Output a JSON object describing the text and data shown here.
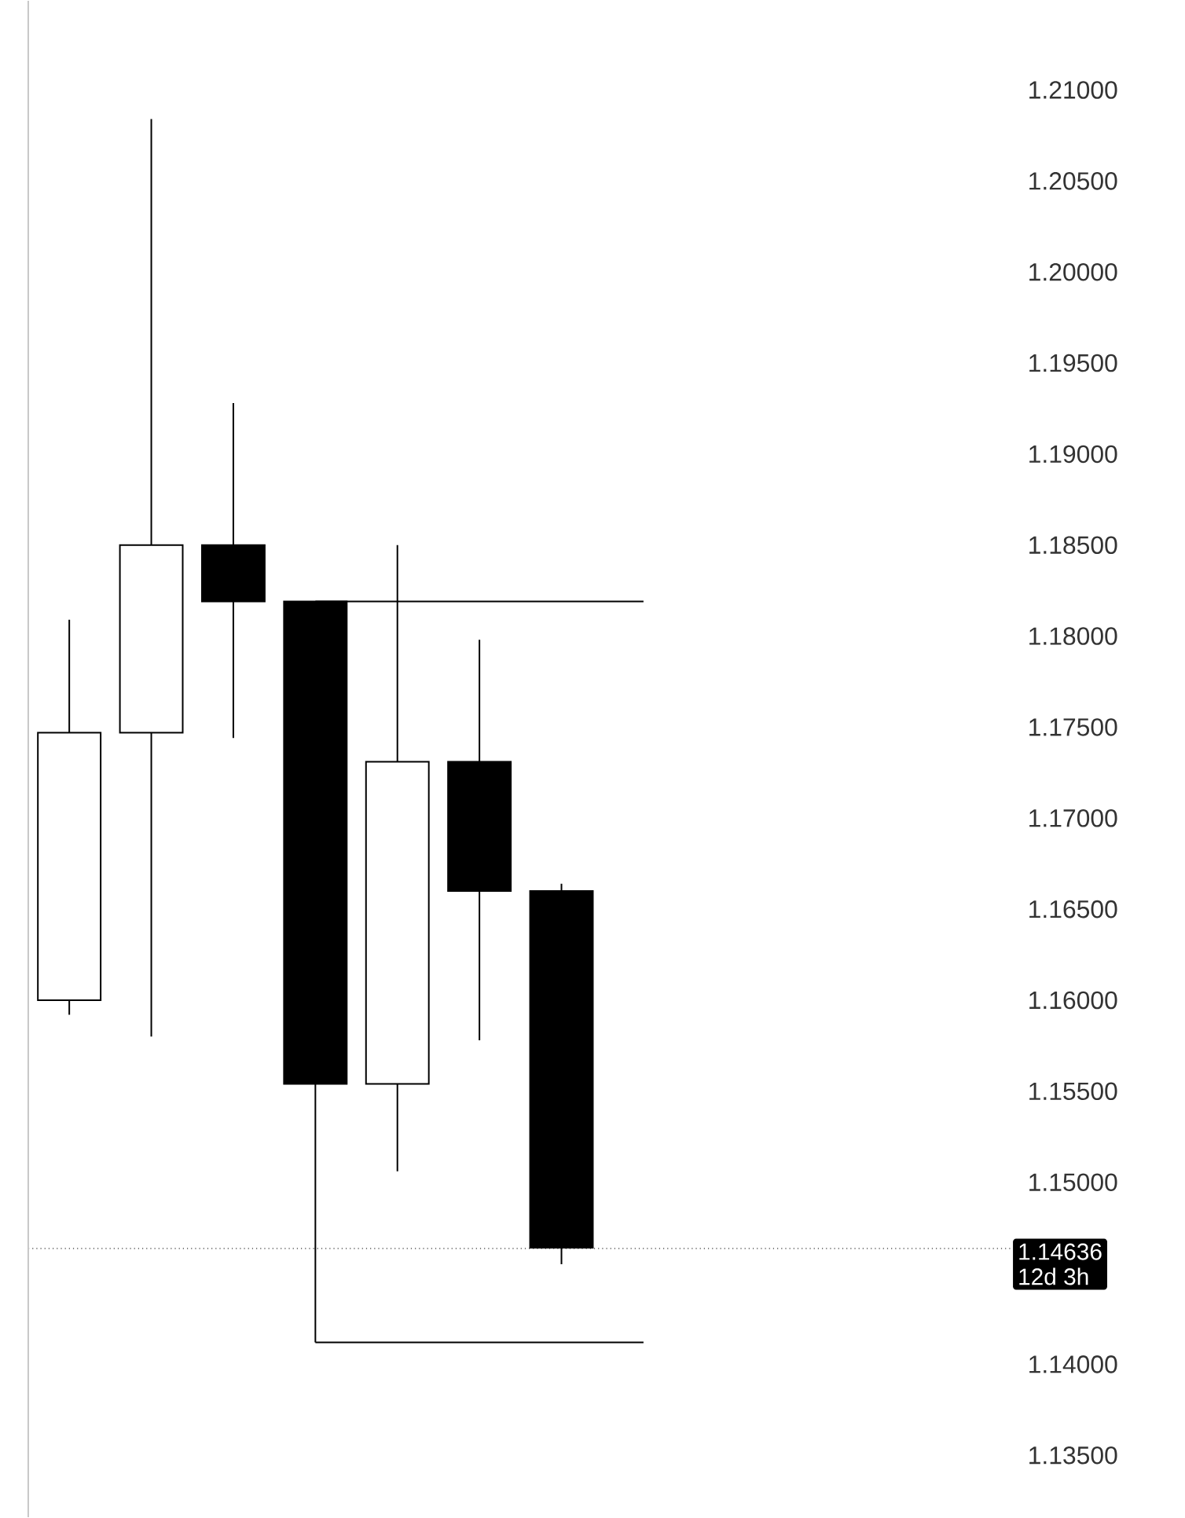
{
  "chart_data": {
    "type": "candlestick",
    "categories": [
      null,
      null,
      null,
      null,
      null,
      null,
      null,
      null,
      null,
      null,
      null,
      null
    ],
    "ohlc": [
      [
        1.16,
        1.1809,
        1.1592,
        1.1747
      ],
      [
        1.1747,
        1.2084,
        1.158,
        1.185
      ],
      [
        1.185,
        1.1928,
        1.1744,
        1.1819
      ],
      [
        1.1819,
        1.1819,
        1.1412,
        1.1554
      ],
      [
        1.1554,
        1.185,
        1.1506,
        1.1731
      ],
      [
        1.1731,
        1.1798,
        1.1578,
        1.166
      ],
      [
        1.166,
        1.1664,
        1.1455,
        1.1464
      ],
      null,
      null,
      null,
      null,
      null
    ],
    "series": [
      {
        "type": "line",
        "color": "#000000",
        "values": [
          null,
          null,
          null,
          1.1819,
          1.1819,
          1.1819,
          1.1819,
          1.1819,
          null,
          null,
          null,
          null
        ]
      },
      {
        "type": "line",
        "color": "#000000",
        "values": [
          null,
          null,
          null,
          1.1412,
          1.1412,
          1.1412,
          1.1412,
          1.1412,
          null,
          null,
          null,
          null
        ]
      }
    ],
    "ylim": [
      1.1316,
      1.2149
    ],
    "yticks": [
      {
        "value": 1.135,
        "label": "1.13500"
      },
      {
        "value": 1.14,
        "label": "1.14000"
      },
      {
        "value": 1.15,
        "label": "1.15000"
      },
      {
        "value": 1.155,
        "label": "1.15500"
      },
      {
        "value": 1.16,
        "label": "1.16000"
      },
      {
        "value": 1.165,
        "label": "1.16500"
      },
      {
        "value": 1.17,
        "label": "1.17000"
      },
      {
        "value": 1.175,
        "label": "1.17500"
      },
      {
        "value": 1.18,
        "label": "1.18000"
      },
      {
        "value": 1.185,
        "label": "1.18500"
      },
      {
        "value": 1.19,
        "label": "1.19000"
      },
      {
        "value": 1.195,
        "label": "1.19500"
      },
      {
        "value": 1.2,
        "label": "1.20000"
      },
      {
        "value": 1.205,
        "label": "1.20500"
      },
      {
        "value": 1.21,
        "label": "1.21000"
      }
    ],
    "ref_lines": [
      {
        "axis": "y",
        "value": 1.14636,
        "label": "1.14636",
        "line_style": "dotted",
        "color": "#000000"
      }
    ],
    "annotations": [
      "12d 3h"
    ]
  }
}
